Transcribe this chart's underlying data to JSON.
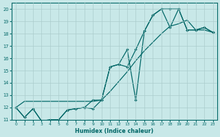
{
  "xlabel": "Humidex (Indice chaleur)",
  "bg_color": "#c8e8e8",
  "grid_color": "#aacccc",
  "line_color": "#006666",
  "xlim": [
    -0.5,
    23.5
  ],
  "ylim": [
    11,
    20.5
  ],
  "xticks": [
    0,
    1,
    2,
    3,
    4,
    5,
    6,
    7,
    8,
    9,
    10,
    11,
    12,
    13,
    14,
    15,
    16,
    17,
    18,
    19,
    20,
    21,
    22,
    23
  ],
  "yticks": [
    11,
    12,
    13,
    14,
    15,
    16,
    17,
    18,
    19,
    20
  ],
  "line1_x": [
    0,
    1,
    2,
    3,
    4,
    5,
    6,
    7,
    8,
    9,
    10,
    11,
    12,
    13,
    14,
    15,
    16,
    17,
    18,
    19,
    20,
    21,
    22,
    23
  ],
  "line1_y": [
    12.0,
    12.5,
    12.5,
    12.5,
    12.5,
    12.5,
    12.5,
    12.5,
    12.5,
    12.5,
    12.6,
    13.3,
    14.1,
    14.9,
    15.8,
    16.6,
    17.3,
    18.0,
    18.6,
    18.8,
    19.1,
    18.3,
    18.3,
    18.1
  ],
  "line2_x": [
    0,
    1,
    2,
    3,
    4,
    5,
    6,
    7,
    8,
    9,
    10,
    11,
    12,
    13,
    14,
    15,
    16,
    17,
    18,
    19,
    20,
    21,
    22,
    23
  ],
  "line2_y": [
    12.0,
    11.2,
    11.9,
    10.9,
    11.0,
    11.0,
    11.8,
    11.9,
    12.0,
    11.9,
    12.6,
    15.3,
    15.5,
    16.7,
    12.6,
    18.2,
    19.5,
    20.0,
    20.0,
    20.0,
    18.3,
    18.3,
    18.5,
    18.1
  ],
  "line3_x": [
    0,
    1,
    2,
    3,
    4,
    5,
    6,
    7,
    8,
    9,
    10,
    11,
    12,
    13,
    14,
    15,
    16,
    17,
    18,
    19,
    20,
    21,
    22,
    23
  ],
  "line3_y": [
    12.0,
    11.2,
    11.9,
    10.9,
    11.0,
    11.0,
    11.8,
    11.9,
    12.0,
    12.6,
    12.6,
    15.3,
    15.5,
    15.3,
    16.7,
    18.2,
    19.5,
    20.0,
    18.5,
    20.0,
    18.3,
    18.3,
    18.5,
    18.1
  ]
}
